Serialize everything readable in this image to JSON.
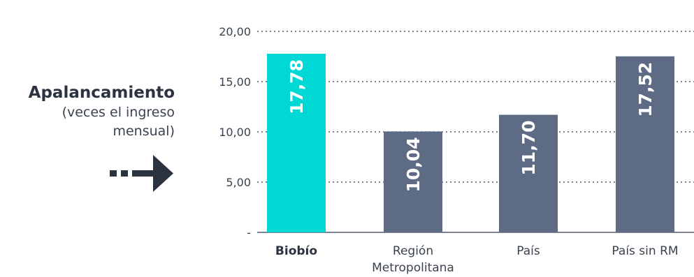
{
  "caption": {
    "title": "Apalancamiento",
    "subtitle_line1": "(veces el ingreso",
    "subtitle_line2": "mensual)",
    "arrow_icon": "dashed-right-arrow-icon"
  },
  "chart_data": {
    "type": "bar",
    "categories": [
      "Biobío",
      "Región Metropolitana",
      "País",
      "País sin RM"
    ],
    "category_lines": [
      [
        "Biobío"
      ],
      [
        "Región",
        "Metropolitana"
      ],
      [
        "País"
      ],
      [
        "País sin RM"
      ]
    ],
    "values": [
      17.78,
      10.04,
      11.7,
      17.52
    ],
    "value_labels": [
      "17,78",
      "10,04",
      "11,70",
      "17,52"
    ],
    "yticks": [
      0,
      5,
      10,
      15,
      20
    ],
    "ytick_labels": [
      "-",
      "5,00",
      "10,00",
      "15,00",
      "20,00"
    ],
    "ylim": [
      0,
      20
    ],
    "grid": "dotted horizontal",
    "highlight_category": "Biobío",
    "colors": {
      "highlight": "#00d8d6",
      "bar": "#5e6b85",
      "text": "#3b4350",
      "grid": "#555b66",
      "arrow": "#2b3240"
    }
  }
}
